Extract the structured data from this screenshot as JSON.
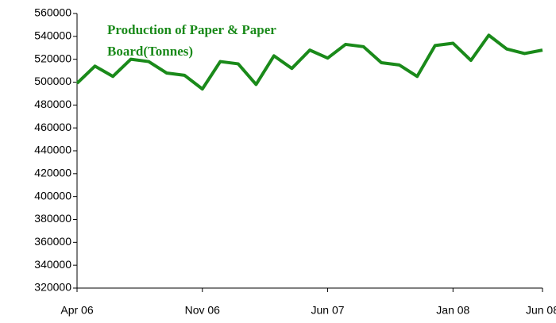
{
  "chart_data": {
    "type": "line",
    "title": "Production of Paper & Paper Board(Tonnes)",
    "categories": [
      "Apr 06",
      null,
      null,
      null,
      null,
      null,
      null,
      "Nov 06",
      null,
      null,
      null,
      null,
      null,
      null,
      "Jun 07",
      null,
      null,
      null,
      null,
      null,
      null,
      "Jan 08",
      null,
      null,
      null,
      null,
      "Jun 08"
    ],
    "series": [
      {
        "name": "Production of Paper & Paper Board(Tonnes)",
        "color": "#1a8a1a",
        "values": [
          499000,
          514000,
          505000,
          520000,
          518000,
          508000,
          506000,
          494000,
          518000,
          516000,
          498000,
          523000,
          512000,
          528000,
          521000,
          533000,
          531000,
          517000,
          515000,
          505000,
          532000,
          534000,
          519000,
          541000,
          529000,
          525000,
          528000
        ]
      }
    ],
    "ylim": [
      320000,
      560000
    ],
    "yticks": [
      320000,
      340000,
      360000,
      380000,
      400000,
      420000,
      440000,
      460000,
      480000,
      500000,
      520000,
      540000,
      560000
    ],
    "grid": false
  }
}
